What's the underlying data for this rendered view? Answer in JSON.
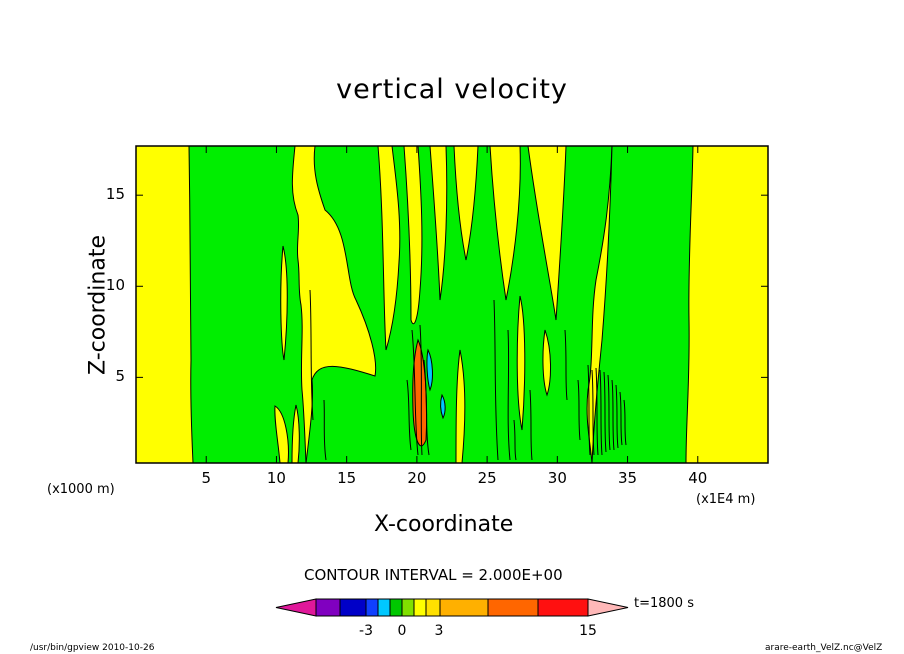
{
  "chart_data": {
    "type": "heatmap",
    "title": "vertical velocity",
    "xlabel": "X-coordinate",
    "ylabel": "Z-coordinate",
    "x_unit": "(x1E4 m)",
    "y_unit": "(x1000 m)",
    "xlim": [
      0,
      45
    ],
    "ylim": [
      0.3,
      17.7
    ],
    "x_ticks": [
      "5",
      "10",
      "15",
      "20",
      "25",
      "30",
      "35",
      "40"
    ],
    "y_ticks": [
      "5",
      "10",
      "15"
    ],
    "contour_interval": "CONTOUR INTERVAL = 2.000E+00",
    "time_label": "t=1800 s",
    "colorbar_labels": [
      "-3",
      "0",
      "3",
      "15"
    ],
    "colors": {
      "positive_weak": "#ffff00",
      "negative_weak": "#00ee00",
      "strong_negative": "#00c8ff",
      "strong_positive": "#ff6600"
    },
    "colorbar_colors": [
      "#e0189a",
      "#8000c0",
      "#0000c8",
      "#1040ff",
      "#00c8ff",
      "#00c800",
      "#80e000",
      "#ffff00",
      "#ffe000",
      "#ffb000",
      "#ff6600",
      "#ff1010",
      "#ff7070",
      "#ffb8b8"
    ]
  },
  "footer": {
    "left": "/usr/bin/gpview   2010-10-26",
    "right": "arare-earth_VelZ.nc@VelZ"
  }
}
